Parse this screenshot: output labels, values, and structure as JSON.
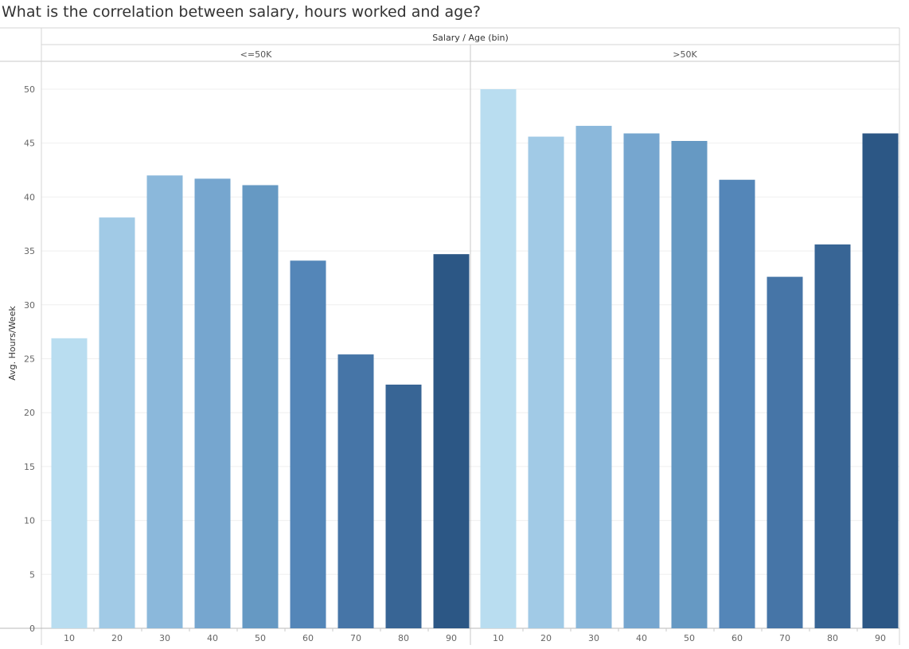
{
  "title": "What is the correlation between salary, hours worked and age?",
  "chart_data": {
    "type": "bar",
    "title": "What is the correlation between salary, hours worked and age?",
    "column_header": "Salary  /  Age (bin)",
    "ylabel": "Avg. Hours/Week",
    "ylim": [
      0,
      52
    ],
    "yticks": [
      0,
      5,
      10,
      15,
      20,
      25,
      30,
      35,
      40,
      45,
      50
    ],
    "grid": true,
    "categories": [
      "10",
      "20",
      "30",
      "40",
      "50",
      "60",
      "70",
      "80",
      "90"
    ],
    "colors": [
      "#b9ddf0",
      "#a1cae6",
      "#8bb8db",
      "#76a6cf",
      "#6699c3",
      "#5486b8",
      "#4675a7",
      "#386595",
      "#2c5785"
    ],
    "panels": [
      {
        "name": "<=50K",
        "values": [
          26.9,
          38.1,
          42.0,
          41.7,
          41.1,
          34.1,
          25.4,
          22.6,
          34.7
        ]
      },
      {
        "name": ">50K",
        "values": [
          50.0,
          45.6,
          46.6,
          45.9,
          45.2,
          41.6,
          32.6,
          35.6,
          45.9
        ]
      }
    ]
  }
}
